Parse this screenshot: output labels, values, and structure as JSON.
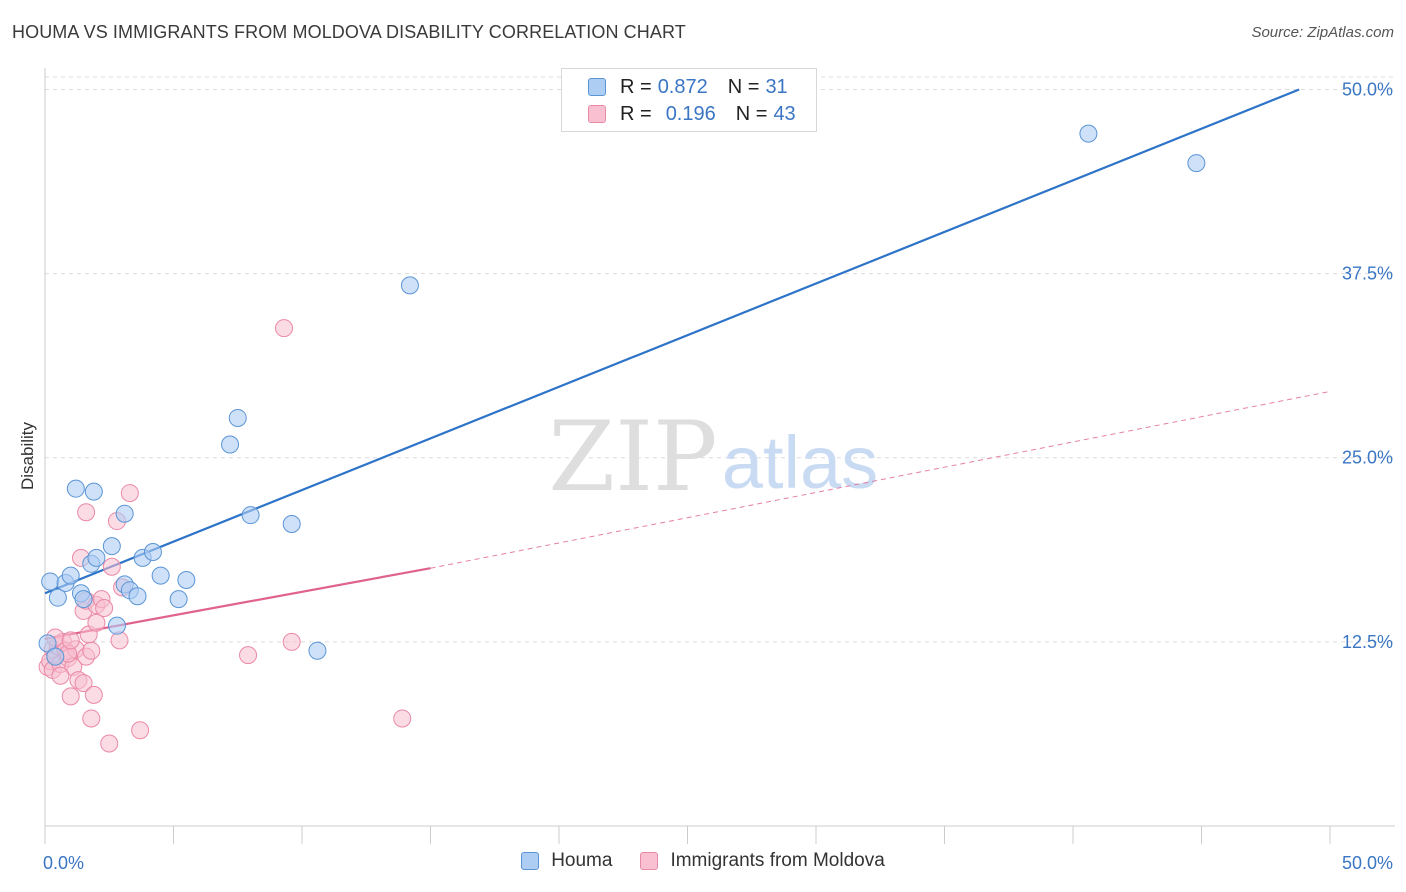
{
  "title": "HOUMA VS IMMIGRANTS FROM MOLDOVA DISABILITY CORRELATION CHART",
  "source": "Source: ZipAtlas.com",
  "watermark": {
    "zip": "ZIP",
    "atlas": "atlas"
  },
  "legend_top": [
    {
      "r_label": "R =",
      "r_value": "0.872",
      "n_label": "N =",
      "n_value": "31"
    },
    {
      "r_label": "R =",
      "r_value": "0.196",
      "n_label": "N =",
      "n_value": "43"
    }
  ],
  "colors": {
    "blue_fill": "#aecdf3",
    "blue_stroke": "#5b95d6",
    "blue_line": "#2d74c9",
    "pink_fill": "#f8c0d0",
    "pink_stroke": "#ea89a6",
    "pink_line": "#e0628e",
    "tick_label": "#3a76c4",
    "grid": "#dcdcdc"
  },
  "chart_data": {
    "type": "scatter",
    "title": "HOUMA VS IMMIGRANTS FROM MOLDOVA DISABILITY CORRELATION CHART",
    "xlabel": "",
    "ylabel": "Disability",
    "xlim": [
      0,
      50
    ],
    "ylim": [
      0,
      52
    ],
    "x_tick_labels": [
      "0.0%",
      "50.0%"
    ],
    "y_ticks": [
      12.5,
      25.0,
      37.5,
      50.0
    ],
    "y_tick_labels": [
      "12.5%",
      "25.0%",
      "37.5%",
      "50.0%"
    ],
    "grid": true,
    "legend_position": "top-center",
    "series": [
      {
        "name": "Houma",
        "r": 0.872,
        "n": 31,
        "trend": {
          "x": [
            0,
            48.8
          ],
          "y": [
            15.8,
            50.0
          ],
          "dashed_to": null
        },
        "points": [
          [
            0.2,
            16.6
          ],
          [
            0.5,
            15.5
          ],
          [
            0.8,
            16.5
          ],
          [
            1.0,
            17.0
          ],
          [
            1.2,
            22.9
          ],
          [
            1.4,
            15.8
          ],
          [
            1.5,
            15.4
          ],
          [
            1.8,
            17.8
          ],
          [
            1.9,
            22.7
          ],
          [
            2.0,
            18.2
          ],
          [
            2.6,
            19.0
          ],
          [
            2.8,
            13.6
          ],
          [
            3.1,
            16.4
          ],
          [
            3.1,
            21.2
          ],
          [
            3.3,
            16.0
          ],
          [
            3.6,
            15.6
          ],
          [
            3.8,
            18.2
          ],
          [
            4.2,
            18.6
          ],
          [
            4.5,
            17.0
          ],
          [
            5.2,
            15.4
          ],
          [
            5.5,
            16.7
          ],
          [
            7.2,
            25.9
          ],
          [
            7.5,
            27.7
          ],
          [
            8.0,
            21.1
          ],
          [
            9.6,
            20.5
          ],
          [
            10.6,
            11.9
          ],
          [
            14.2,
            36.7
          ],
          [
            40.6,
            47.0
          ],
          [
            44.8,
            45.0
          ],
          [
            0.1,
            12.4
          ],
          [
            0.4,
            11.5
          ]
        ]
      },
      {
        "name": "Immigrants from Moldova",
        "r": 0.196,
        "n": 43,
        "trend": {
          "x": [
            0,
            15.0
          ],
          "y": [
            12.7,
            17.5
          ],
          "dashed_to": [
            50,
            29.5
          ]
        },
        "points": [
          [
            0.1,
            10.8
          ],
          [
            0.2,
            11.2
          ],
          [
            0.3,
            12.0
          ],
          [
            0.3,
            10.6
          ],
          [
            0.4,
            11.6
          ],
          [
            0.5,
            12.2
          ],
          [
            0.6,
            11.0
          ],
          [
            0.7,
            12.5
          ],
          [
            0.8,
            11.9
          ],
          [
            0.9,
            11.4
          ],
          [
            1.0,
            8.8
          ],
          [
            1.1,
            10.8
          ],
          [
            1.2,
            12.0
          ],
          [
            1.4,
            18.2
          ],
          [
            1.3,
            9.9
          ],
          [
            1.5,
            14.6
          ],
          [
            1.5,
            9.7
          ],
          [
            1.6,
            11.5
          ],
          [
            1.6,
            15.3
          ],
          [
            1.6,
            21.3
          ],
          [
            1.7,
            13.0
          ],
          [
            1.8,
            11.9
          ],
          [
            1.8,
            7.3
          ],
          [
            1.9,
            8.9
          ],
          [
            2.0,
            15.0
          ],
          [
            2.0,
            13.8
          ],
          [
            2.2,
            15.4
          ],
          [
            2.3,
            14.8
          ],
          [
            2.5,
            5.6
          ],
          [
            2.6,
            17.6
          ],
          [
            2.8,
            20.7
          ],
          [
            2.9,
            12.6
          ],
          [
            3.0,
            16.2
          ],
          [
            3.3,
            22.6
          ],
          [
            3.7,
            6.5
          ],
          [
            7.9,
            11.6
          ],
          [
            9.3,
            33.8
          ],
          [
            9.6,
            12.5
          ],
          [
            13.9,
            7.3
          ],
          [
            0.4,
            12.8
          ],
          [
            0.6,
            10.2
          ],
          [
            0.9,
            11.7
          ],
          [
            1.0,
            12.6
          ]
        ]
      }
    ]
  },
  "bottom_legend": [
    {
      "label": "Houma"
    },
    {
      "label": "Immigrants from Moldova"
    }
  ]
}
